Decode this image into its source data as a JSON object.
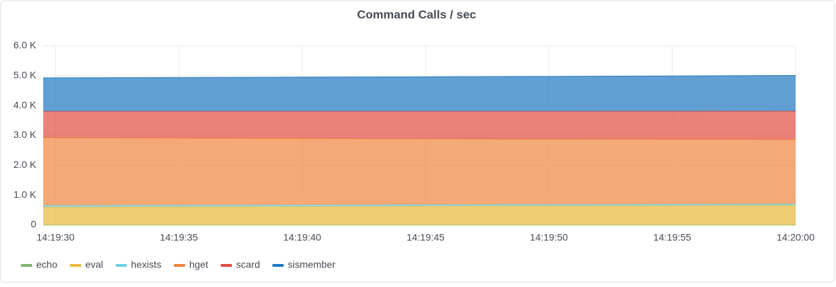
{
  "chart_data": {
    "type": "stacked-area",
    "title": "Command Calls / sec",
    "x": [
      51569.5,
      51575,
      51580,
      51585,
      51590,
      51595,
      51600
    ],
    "xlim": [
      51569.5,
      51600
    ],
    "xticks": [
      {
        "value": 51570,
        "label": "14:19:30"
      },
      {
        "value": 51575,
        "label": "14:19:35"
      },
      {
        "value": 51580,
        "label": "14:19:40"
      },
      {
        "value": 51585,
        "label": "14:19:45"
      },
      {
        "value": 51590,
        "label": "14:19:50"
      },
      {
        "value": 51595,
        "label": "14:19:55"
      },
      {
        "value": 51600,
        "label": "14:20:00"
      }
    ],
    "ylim": [
      0,
      6000
    ],
    "yticks": [
      0,
      {
        "value": 1000,
        "label": "1.0 K"
      },
      {
        "value": 2000,
        "label": "2.0 K"
      },
      {
        "value": 3000,
        "label": "3.0 K"
      },
      {
        "value": 4000,
        "label": "4.0 K"
      },
      {
        "value": 5000,
        "label": "5.0 K"
      },
      {
        "value": 6000,
        "label": "6.0 K"
      }
    ],
    "grid": true,
    "series": [
      {
        "name": "echo",
        "color": "#7eb26d",
        "values": [
          0,
          0,
          0,
          0,
          0,
          0,
          0
        ]
      },
      {
        "name": "eval",
        "color": "#eab839",
        "values": [
          600,
          610,
          620,
          630,
          640,
          650,
          660
        ]
      },
      {
        "name": "hexists",
        "color": "#6ed0e0",
        "values": [
          60,
          58,
          56,
          55,
          53,
          52,
          50
        ]
      },
      {
        "name": "hget",
        "color": "#ef843c",
        "values": [
          2270,
          2250,
          2230,
          2210,
          2190,
          2175,
          2160
        ]
      },
      {
        "name": "scard",
        "color": "#e24d42",
        "values": [
          880,
          892,
          904,
          915,
          927,
          938,
          950
        ]
      },
      {
        "name": "sismember",
        "color": "#1f78c1",
        "values": [
          1120,
          1132,
          1144,
          1155,
          1167,
          1178,
          1190
        ]
      }
    ]
  }
}
